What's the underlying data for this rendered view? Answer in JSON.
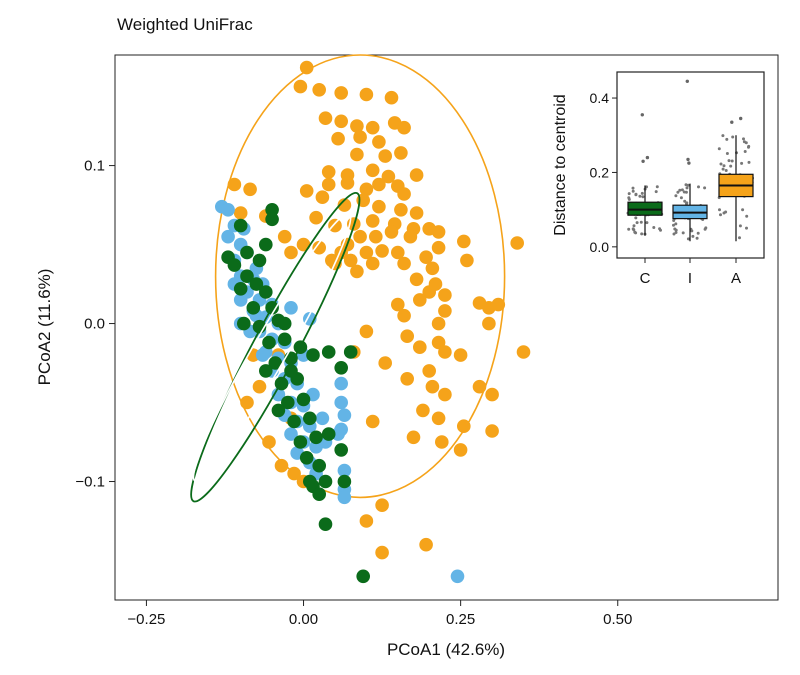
{
  "chart_data": [
    {
      "type": "scatter",
      "title": "Weighted UniFrac",
      "xlabel": "PCoA1 (42.6%)",
      "ylabel": "PCoA2 (11.6%)",
      "xlim": [
        -0.3,
        0.755
      ],
      "ylim": [
        -0.175,
        0.17
      ],
      "xticks": [
        -0.25,
        0.0,
        0.25,
        0.5
      ],
      "xtick_labels": [
        "−0.25",
        "0.00",
        "0.25",
        "0.50"
      ],
      "yticks": [
        -0.1,
        0.0,
        0.1
      ],
      "ytick_labels": [
        "−0.1",
        "0.0",
        "0.1"
      ],
      "grid": false,
      "legend": "none",
      "colors": {
        "C": "#0b6b1a",
        "I": "#63b4e6",
        "A": "#f5a31a"
      },
      "series": [
        {
          "group": "A",
          "points": [
            [
              0.005,
              0.162
            ],
            [
              -0.005,
              0.15
            ],
            [
              0.025,
              0.148
            ],
            [
              0.06,
              0.146
            ],
            [
              0.1,
              0.145
            ],
            [
              0.14,
              0.143
            ],
            [
              0.035,
              0.13
            ],
            [
              0.06,
              0.128
            ],
            [
              0.085,
              0.125
            ],
            [
              0.11,
              0.124
            ],
            [
              0.145,
              0.127
            ],
            [
              0.16,
              0.124
            ],
            [
              0.055,
              0.117
            ],
            [
              0.09,
              0.118
            ],
            [
              0.12,
              0.115
            ],
            [
              0.085,
              0.107
            ],
            [
              0.13,
              0.106
            ],
            [
              0.155,
              0.108
            ],
            [
              0.04,
              0.096
            ],
            [
              0.07,
              0.094
            ],
            [
              0.11,
              0.097
            ],
            [
              0.135,
              0.093
            ],
            [
              0.18,
              0.094
            ],
            [
              0.04,
              0.088
            ],
            [
              0.07,
              0.089
            ],
            [
              0.1,
              0.085
            ],
            [
              0.12,
              0.088
            ],
            [
              0.15,
              0.087
            ],
            [
              0.16,
              0.082
            ],
            [
              -0.11,
              0.088
            ],
            [
              -0.085,
              0.085
            ],
            [
              0.005,
              0.084
            ],
            [
              0.03,
              0.08
            ],
            [
              0.065,
              0.075
            ],
            [
              0.095,
              0.078
            ],
            [
              0.12,
              0.074
            ],
            [
              0.155,
              0.072
            ],
            [
              0.18,
              0.07
            ],
            [
              0.08,
              0.063
            ],
            [
              0.11,
              0.065
            ],
            [
              0.145,
              0.063
            ],
            [
              0.175,
              0.06
            ],
            [
              0.2,
              0.06
            ],
            [
              0.02,
              0.067
            ],
            [
              0.05,
              0.062
            ],
            [
              0.09,
              0.055
            ],
            [
              0.115,
              0.055
            ],
            [
              0.14,
              0.058
            ],
            [
              0.17,
              0.055
            ],
            [
              0.215,
              0.058
            ],
            [
              0.025,
              0.048
            ],
            [
              0.06,
              0.045
            ],
            [
              0.07,
              0.05
            ],
            [
              0.1,
              0.045
            ],
            [
              0.125,
              0.046
            ],
            [
              0.15,
              0.045
            ],
            [
              0.195,
              0.042
            ],
            [
              0.215,
              0.048
            ],
            [
              0.255,
              0.052
            ],
            [
              0.34,
              0.051
            ],
            [
              0.045,
              0.04
            ],
            [
              0.075,
              0.04
            ],
            [
              0.11,
              0.038
            ],
            [
              0.16,
              0.038
            ],
            [
              0.205,
              0.035
            ],
            [
              0.26,
              0.04
            ],
            [
              -0.1,
              0.07
            ],
            [
              -0.06,
              0.068
            ],
            [
              -0.03,
              0.055
            ],
            [
              -0.0,
              0.05
            ],
            [
              -0.02,
              0.045
            ],
            [
              0.05,
              0.038
            ],
            [
              0.085,
              0.033
            ],
            [
              0.18,
              0.028
            ],
            [
              0.2,
              0.02
            ],
            [
              0.21,
              0.025
            ],
            [
              0.225,
              0.018
            ],
            [
              0.185,
              0.015
            ],
            [
              0.15,
              0.012
            ],
            [
              0.225,
              0.008
            ],
            [
              0.28,
              0.013
            ],
            [
              0.295,
              0.01
            ],
            [
              0.31,
              0.012
            ],
            [
              0.16,
              0.005
            ],
            [
              0.215,
              0.0
            ],
            [
              0.295,
              0.0
            ],
            [
              0.1,
              -0.005
            ],
            [
              0.165,
              -0.008
            ],
            [
              0.185,
              -0.015
            ],
            [
              0.215,
              -0.012
            ],
            [
              0.225,
              -0.018
            ],
            [
              0.25,
              -0.02
            ],
            [
              0.35,
              -0.018
            ],
            [
              0.08,
              -0.018
            ],
            [
              0.13,
              -0.025
            ],
            [
              0.2,
              -0.03
            ],
            [
              0.165,
              -0.035
            ],
            [
              0.205,
              -0.04
            ],
            [
              0.225,
              -0.045
            ],
            [
              0.28,
              -0.04
            ],
            [
              0.3,
              -0.045
            ],
            [
              0.19,
              -0.055
            ],
            [
              0.215,
              -0.06
            ],
            [
              0.11,
              -0.062
            ],
            [
              0.255,
              -0.065
            ],
            [
              0.3,
              -0.068
            ],
            [
              0.175,
              -0.072
            ],
            [
              0.22,
              -0.075
            ],
            [
              0.25,
              -0.08
            ],
            [
              0.1,
              -0.125
            ],
            [
              0.125,
              -0.115
            ],
            [
              0.195,
              -0.14
            ],
            [
              0.125,
              -0.145
            ],
            [
              -0.09,
              -0.05
            ],
            [
              -0.07,
              -0.04
            ],
            [
              -0.04,
              -0.02
            ],
            [
              -0.02,
              -0.06
            ],
            [
              -0.055,
              -0.075
            ],
            [
              -0.035,
              -0.09
            ],
            [
              -0.015,
              -0.095
            ],
            [
              0.0,
              -0.1
            ],
            [
              -0.08,
              -0.02
            ]
          ]
        },
        {
          "group": "I",
          "points": [
            [
              -0.13,
              0.074
            ],
            [
              -0.12,
              0.072
            ],
            [
              -0.11,
              0.062
            ],
            [
              -0.095,
              0.06
            ],
            [
              -0.12,
              0.055
            ],
            [
              -0.1,
              0.05
            ],
            [
              -0.11,
              0.04
            ],
            [
              -0.09,
              0.045
            ],
            [
              -0.075,
              0.035
            ],
            [
              -0.1,
              0.03
            ],
            [
              -0.08,
              0.028
            ],
            [
              -0.065,
              0.025
            ],
            [
              -0.09,
              0.02
            ],
            [
              -0.07,
              0.015
            ],
            [
              -0.05,
              0.012
            ],
            [
              -0.08,
              0.008
            ],
            [
              -0.06,
              0.004
            ],
            [
              -0.04,
              0.0
            ],
            [
              -0.07,
              -0.005
            ],
            [
              -0.05,
              -0.01
            ],
            [
              -0.03,
              -0.012
            ],
            [
              -0.06,
              -0.018
            ],
            [
              -0.04,
              -0.022
            ],
            [
              -0.02,
              -0.025
            ],
            [
              -0.05,
              -0.03
            ],
            [
              -0.03,
              -0.035
            ],
            [
              -0.01,
              -0.038
            ],
            [
              -0.04,
              -0.045
            ],
            [
              -0.02,
              -0.05
            ],
            [
              0.0,
              -0.052
            ],
            [
              -0.03,
              -0.058
            ],
            [
              -0.01,
              -0.062
            ],
            [
              0.01,
              -0.065
            ],
            [
              -0.02,
              -0.07
            ],
            [
              0.0,
              -0.075
            ],
            [
              0.02,
              -0.078
            ],
            [
              -0.01,
              -0.082
            ],
            [
              0.01,
              -0.088
            ],
            [
              0.02,
              -0.095
            ],
            [
              -0.1,
              0.015
            ],
            [
              -0.085,
              -0.005
            ],
            [
              -0.065,
              -0.02
            ],
            [
              -0.11,
              0.025
            ],
            [
              -0.1,
              0.0
            ],
            [
              -0.075,
              0.005
            ],
            [
              0.06,
              -0.038
            ],
            [
              0.06,
              -0.05
            ],
            [
              0.065,
              -0.058
            ],
            [
              0.06,
              -0.067
            ],
            [
              0.055,
              -0.07
            ],
            [
              0.065,
              -0.093
            ],
            [
              0.065,
              -0.105
            ],
            [
              0.065,
              -0.11
            ],
            [
              0.245,
              -0.16
            ],
            [
              0.01,
              0.003
            ],
            [
              -0.02,
              0.01
            ],
            [
              0.0,
              -0.02
            ],
            [
              0.015,
              -0.045
            ],
            [
              0.03,
              -0.06
            ],
            [
              0.035,
              -0.075
            ]
          ]
        },
        {
          "group": "C",
          "points": [
            [
              -0.05,
              0.072
            ],
            [
              -0.05,
              0.066
            ],
            [
              -0.1,
              0.062
            ],
            [
              -0.12,
              0.042
            ],
            [
              -0.11,
              0.037
            ],
            [
              -0.09,
              0.045
            ],
            [
              -0.07,
              0.04
            ],
            [
              -0.06,
              0.05
            ],
            [
              -0.09,
              0.03
            ],
            [
              -0.075,
              0.025
            ],
            [
              -0.1,
              0.022
            ],
            [
              -0.06,
              0.02
            ],
            [
              -0.08,
              0.01
            ],
            [
              -0.05,
              0.01
            ],
            [
              -0.07,
              -0.002
            ],
            [
              -0.04,
              0.002
            ],
            [
              -0.055,
              -0.012
            ],
            [
              -0.03,
              -0.01
            ],
            [
              -0.045,
              -0.025
            ],
            [
              -0.02,
              -0.022
            ],
            [
              -0.035,
              -0.038
            ],
            [
              -0.01,
              -0.035
            ],
            [
              -0.025,
              -0.05
            ],
            [
              0.0,
              -0.048
            ],
            [
              -0.015,
              -0.062
            ],
            [
              0.01,
              -0.06
            ],
            [
              -0.005,
              -0.075
            ],
            [
              0.02,
              -0.072
            ],
            [
              0.005,
              -0.085
            ],
            [
              0.025,
              -0.09
            ],
            [
              -0.02,
              -0.03
            ],
            [
              -0.005,
              -0.015
            ],
            [
              0.015,
              -0.02
            ],
            [
              -0.03,
              0.0
            ],
            [
              -0.06,
              -0.03
            ],
            [
              -0.04,
              -0.055
            ],
            [
              0.04,
              -0.018
            ],
            [
              0.06,
              -0.028
            ],
            [
              0.075,
              -0.018
            ],
            [
              0.04,
              -0.07
            ],
            [
              0.06,
              -0.08
            ],
            [
              0.035,
              -0.1
            ],
            [
              0.065,
              -0.1
            ],
            [
              0.01,
              -0.1
            ],
            [
              0.015,
              -0.103
            ],
            [
              0.025,
              -0.108
            ],
            [
              0.035,
              -0.127
            ],
            [
              0.095,
              -0.16
            ],
            [
              -0.095,
              0.0
            ]
          ]
        }
      ],
      "ellipses": [
        {
          "group": "A",
          "label": "A ellipse"
        },
        {
          "group": "C",
          "label": "C ellipse"
        },
        {
          "group": "I",
          "label": "I ellipse"
        }
      ]
    },
    {
      "type": "box",
      "title": "",
      "xlabel": "",
      "ylabel": "Distance to centroid",
      "categories": [
        "C",
        "I",
        "A"
      ],
      "ylim": [
        -0.03,
        0.47
      ],
      "yticks": [
        0.0,
        0.2,
        0.4
      ],
      "ytick_labels": [
        "0.0",
        "0.2",
        "0.4"
      ],
      "colors": {
        "C": "#0b6b1a",
        "I": "#63b4e6",
        "A": "#f5a31a"
      },
      "boxes": [
        {
          "category": "C",
          "q1": 0.085,
          "median": 0.1,
          "q3": 0.12,
          "whisker_low": 0.03,
          "whisker_high": 0.165,
          "outliers": [
            0.355,
            0.24,
            0.23
          ]
        },
        {
          "category": "I",
          "q1": 0.076,
          "median": 0.092,
          "q3": 0.112,
          "whisker_low": 0.015,
          "whisker_high": 0.17,
          "outliers": [
            0.445,
            0.235,
            0.225
          ]
        },
        {
          "category": "A",
          "q1": 0.135,
          "median": 0.165,
          "q3": 0.195,
          "whisker_low": 0.015,
          "whisker_high": 0.3,
          "outliers": [
            0.345,
            0.335
          ]
        }
      ]
    }
  ]
}
